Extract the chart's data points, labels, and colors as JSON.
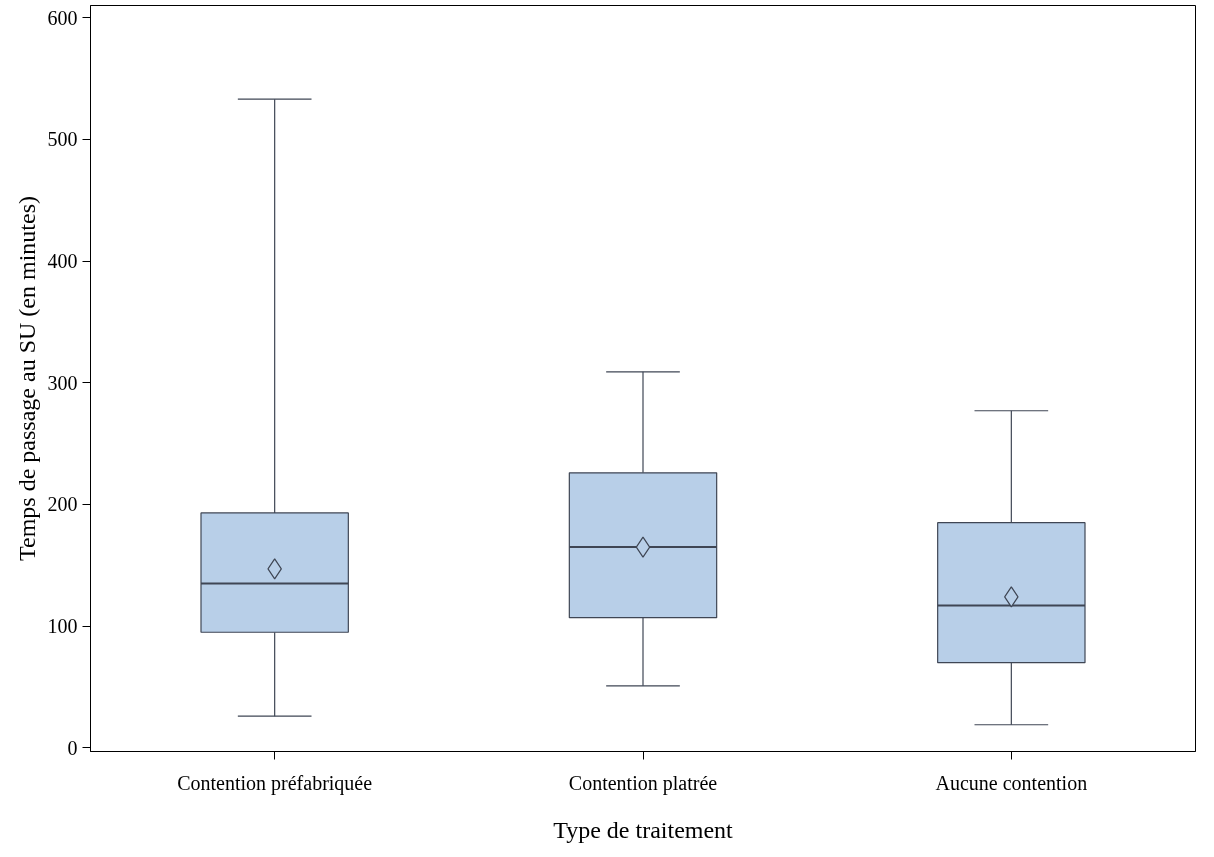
{
  "chart_data": {
    "type": "box",
    "xlabel": "Type de traitement",
    "ylabel": "Temps de passage au SU (en minutes)",
    "categories": [
      "Contention préfabriquée",
      "Contention platrée",
      "Aucune contention"
    ],
    "boxes": [
      {
        "low": 26,
        "q1": 95,
        "median": 135,
        "q3": 193,
        "high": 533,
        "mean": 147
      },
      {
        "low": 51,
        "q1": 107,
        "median": 165,
        "q3": 226,
        "high": 309,
        "mean": 165
      },
      {
        "low": 19,
        "q1": 70,
        "median": 117,
        "q3": 185,
        "high": 277,
        "mean": 124
      }
    ],
    "color": "#b8cfe8",
    "ylim": [
      -3,
      610
    ],
    "yticks": [
      0,
      100,
      200,
      300,
      400,
      500,
      600
    ],
    "grid": false,
    "marker": "diamond"
  }
}
